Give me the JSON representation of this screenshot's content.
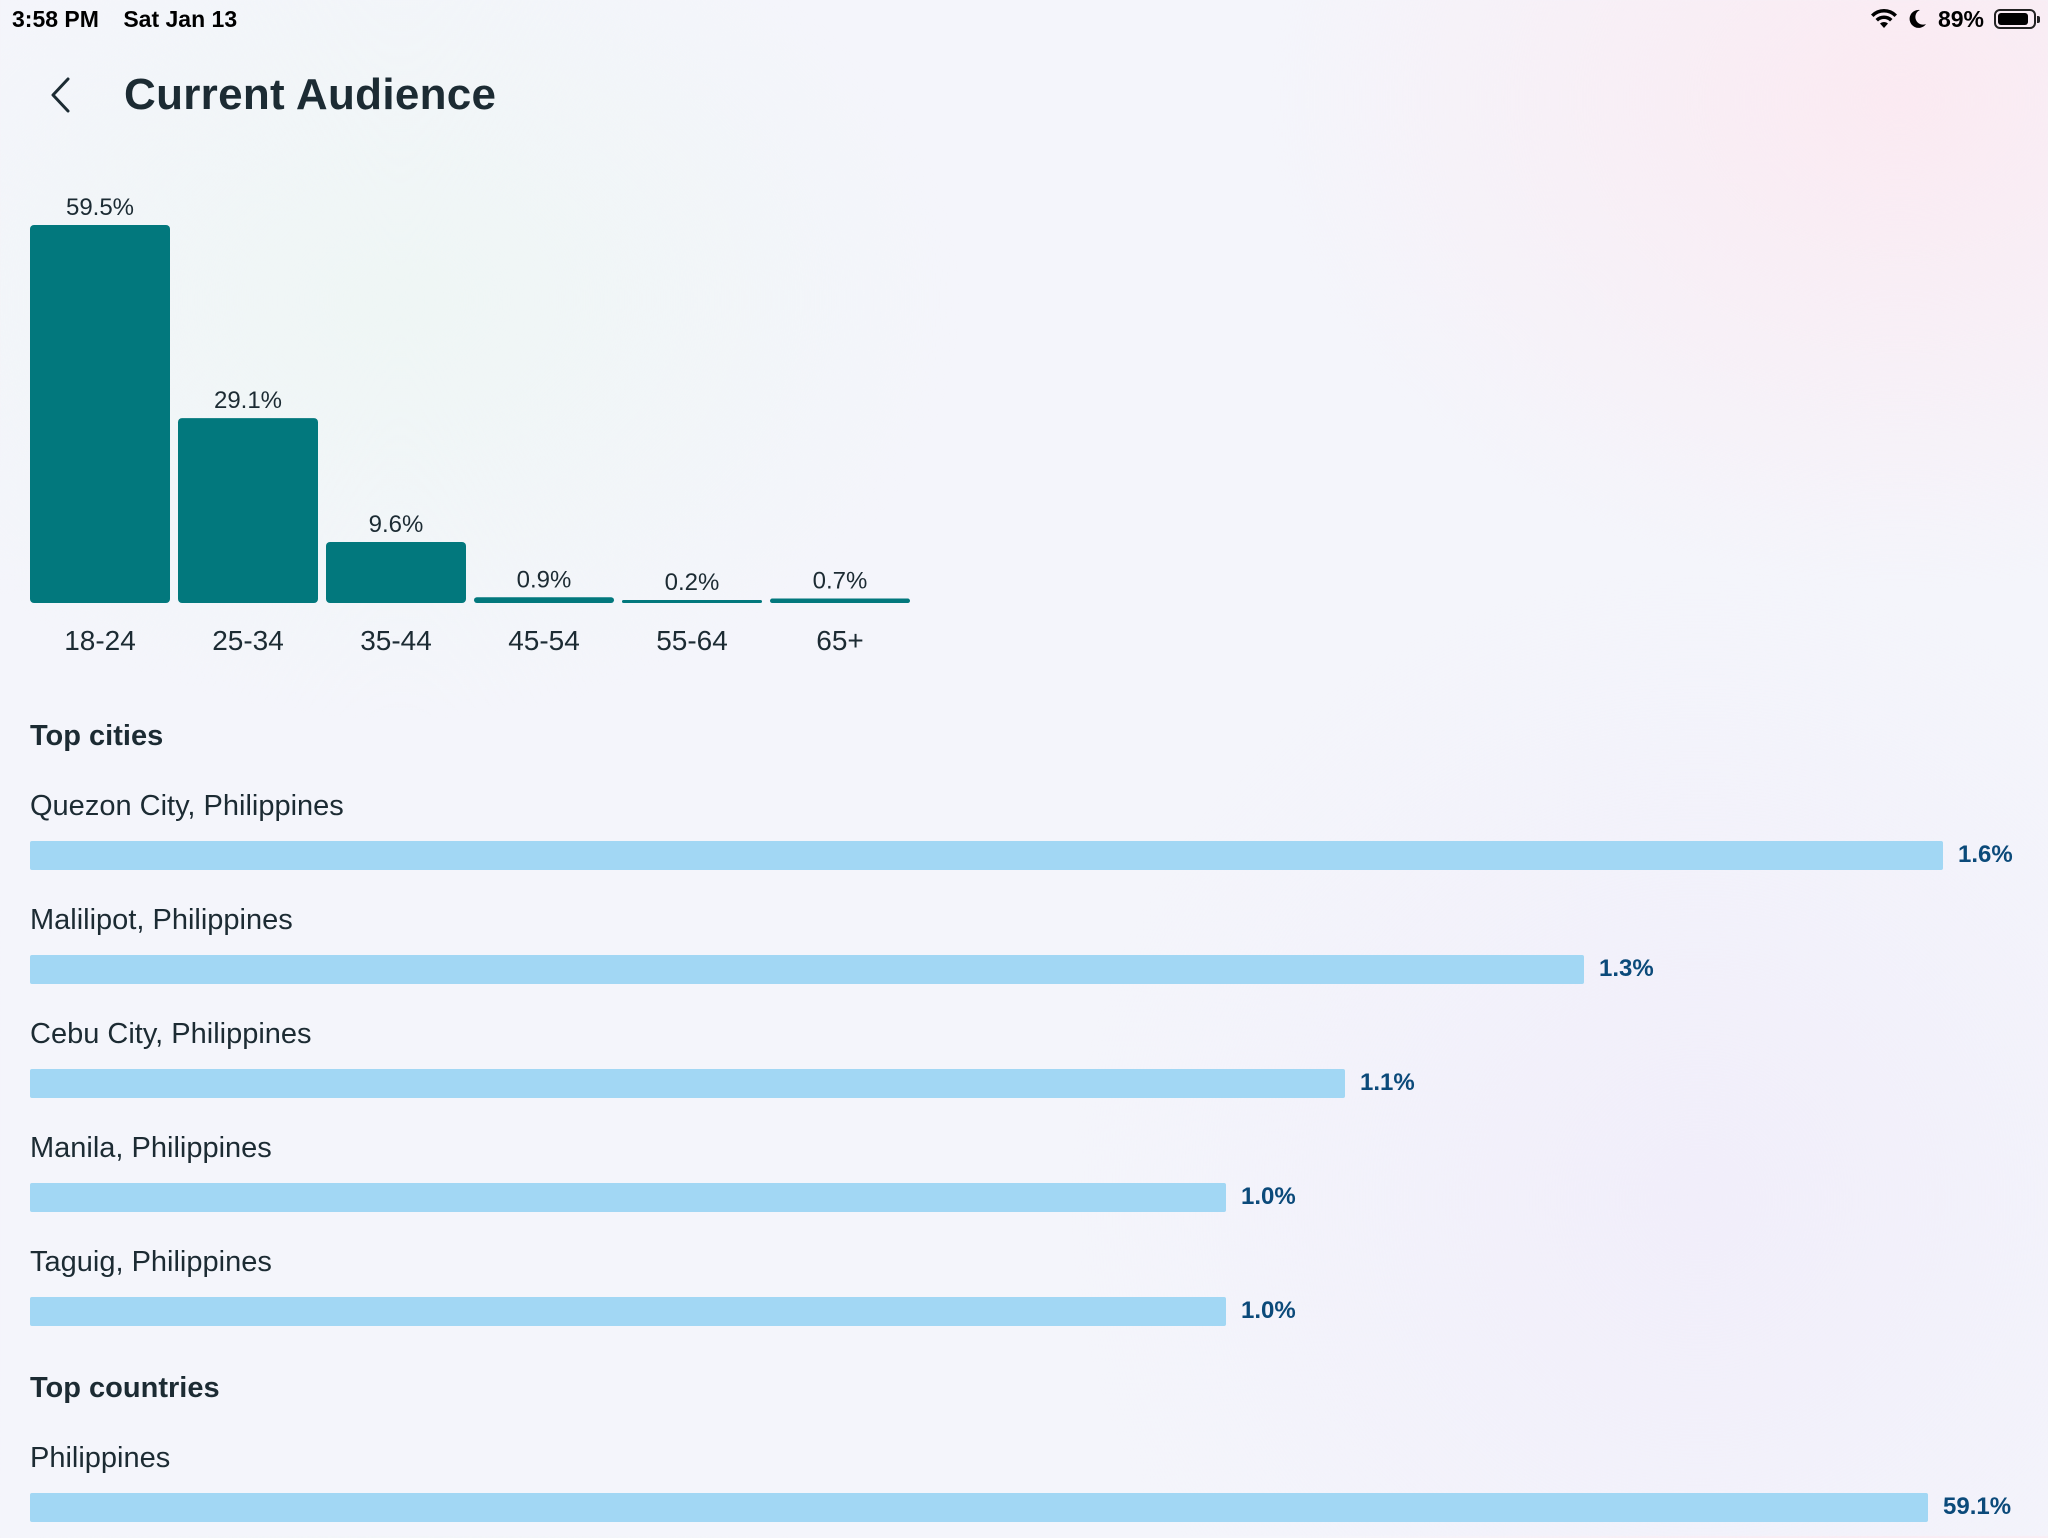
{
  "status_bar": {
    "time": "3:58 PM",
    "date": "Sat Jan 13",
    "battery": "89%",
    "battery_level": 0.89
  },
  "header": {
    "title": "Current Audience"
  },
  "colors": {
    "age_bar": "#02787d",
    "rank_bar": "#a2d7f4",
    "rank_value_text": "#0b4a7a"
  },
  "chart_data": {
    "type": "bar",
    "categories": [
      "18-24",
      "25-34",
      "35-44",
      "45-54",
      "55-64",
      "65+"
    ],
    "values": [
      59.5,
      29.1,
      9.6,
      0.9,
      0.2,
      0.7
    ],
    "value_labels": [
      "59.5%",
      "29.1%",
      "9.6%",
      "0.9%",
      "0.2%",
      "0.7%"
    ],
    "title": "",
    "xlabel": "",
    "ylabel": "",
    "ylim": [
      0,
      59.5
    ],
    "grid": false
  },
  "top_cities": {
    "title": "Top cities",
    "max_value": 1.6,
    "items": [
      {
        "name": "Quezon City, Philippines",
        "value": 1.6,
        "label": "1.6%"
      },
      {
        "name": "Malilipot, Philippines",
        "value": 1.3,
        "label": "1.3%"
      },
      {
        "name": "Cebu City, Philippines",
        "value": 1.1,
        "label": "1.1%"
      },
      {
        "name": "Manila, Philippines",
        "value": 1.0,
        "label": "1.0%"
      },
      {
        "name": "Taguig, Philippines",
        "value": 1.0,
        "label": "1.0%"
      }
    ]
  },
  "top_countries": {
    "title": "Top countries",
    "max_value": 59.1,
    "items": [
      {
        "name": "Philippines",
        "value": 59.1,
        "label": "59.1%"
      }
    ]
  }
}
